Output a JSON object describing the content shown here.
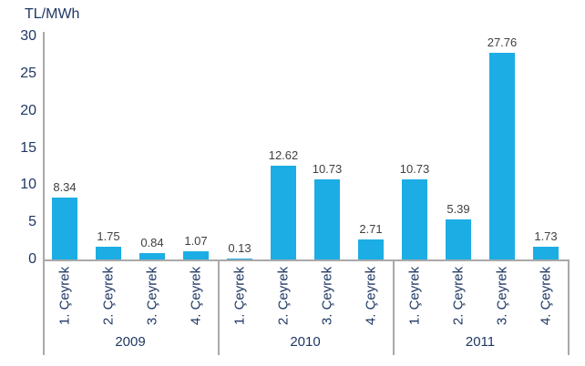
{
  "chart_data": {
    "type": "bar",
    "title": "",
    "ylabel": "TL/MWh",
    "xlabel": "",
    "ylim": [
      0,
      30
    ],
    "yticks": [
      0,
      5,
      10,
      15,
      20,
      25,
      30
    ],
    "grid": false,
    "legend": false,
    "bar_color": "#1CADE4",
    "axis_text_color": "#1F3864",
    "data_label_color": "#404040",
    "axis_line_color": "#A9A9A9",
    "groups": [
      {
        "year": "2009",
        "categories": [
          "1. Çeyrek",
          "2. Çeyrek",
          "3. Çeyrek",
          "4. Çeyrek"
        ],
        "values": [
          8.34,
          1.75,
          0.84,
          1.07
        ]
      },
      {
        "year": "2010",
        "categories": [
          "1. Çeyrek",
          "2. Çeyrek",
          "3. Çeyrek",
          "4. Çeyrek"
        ],
        "values": [
          0.13,
          12.62,
          10.73,
          2.71
        ]
      },
      {
        "year": "2011",
        "categories": [
          "1. Çeyrek",
          "2. Çeyrek",
          "3. Çeyrek",
          "4. Çeyrek"
        ],
        "values": [
          10.73,
          5.39,
          27.76,
          1.73
        ]
      }
    ]
  }
}
